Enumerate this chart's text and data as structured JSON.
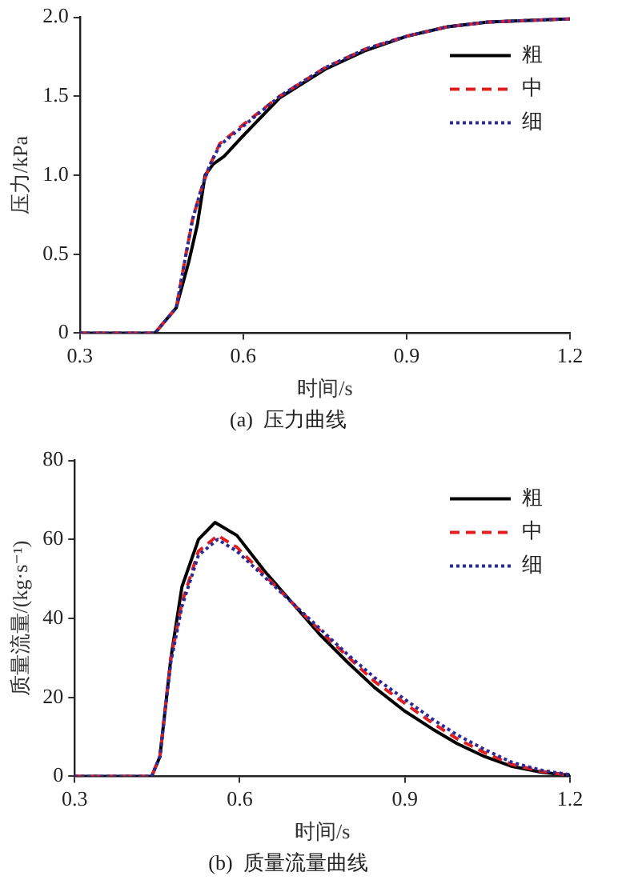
{
  "chart_data": [
    {
      "type": "line",
      "title": "(a)  压力曲线",
      "xlabel": "时间/s",
      "ylabel": "压力/kPa",
      "xlim": [
        0.3,
        1.2
      ],
      "xticks": [
        0.3,
        0.6,
        0.9,
        1.2
      ],
      "ylim": [
        0,
        2
      ],
      "yticks": [
        0,
        0.5,
        {
          "value": 1,
          "label": "1.0"
        },
        1.5,
        {
          "value": 2,
          "label": "2.0"
        }
      ],
      "grid": false,
      "legend": "top right",
      "marker": "none",
      "series": [
        {
          "name": "粗",
          "color": "#000000",
          "line_style": "solid",
          "x": [
            0.3,
            0.438,
            0.477,
            0.5,
            0.516,
            0.53,
            0.545,
            0.565,
            0.6,
            0.667,
            0.75,
            0.825,
            0.9,
            0.975,
            1.05,
            1.125,
            1.2
          ],
          "values": [
            0,
            0,
            0.16,
            0.45,
            0.69,
            1.0,
            1.07,
            1.12,
            1.25,
            1.49,
            1.67,
            1.79,
            1.88,
            1.94,
            1.97,
            1.98,
            1.99
          ]
        },
        {
          "name": "中",
          "color": "#e02020",
          "line_style": "dashed",
          "x": [
            0.3,
            0.438,
            0.477,
            0.495,
            0.507,
            0.522,
            0.537,
            0.557,
            0.6,
            0.667,
            0.75,
            0.825,
            0.9,
            0.975,
            1.05,
            1.125,
            1.2
          ],
          "values": [
            0,
            0,
            0.16,
            0.5,
            0.72,
            0.9,
            1.05,
            1.2,
            1.32,
            1.5,
            1.68,
            1.8,
            1.88,
            1.94,
            1.97,
            1.98,
            1.99
          ]
        },
        {
          "name": "细",
          "color": "#2a2a9a",
          "line_style": "dotted",
          "x": [
            0.3,
            0.438,
            0.477,
            0.495,
            0.507,
            0.522,
            0.537,
            0.557,
            0.6,
            0.667,
            0.75,
            0.825,
            0.9,
            0.975,
            1.05,
            1.125,
            1.2
          ],
          "values": [
            0,
            0,
            0.16,
            0.5,
            0.72,
            0.9,
            1.05,
            1.19,
            1.31,
            1.5,
            1.68,
            1.8,
            1.88,
            1.94,
            1.97,
            1.98,
            1.99
          ]
        }
      ]
    },
    {
      "type": "line",
      "title": "(b)  质量流量曲线",
      "xlabel": "时间/s",
      "ylabel": "质量流量/(kg·s⁻¹)",
      "xlim": [
        0.3,
        1.2
      ],
      "xticks": [
        0.3,
        0.6,
        0.9,
        1.2
      ],
      "ylim": [
        0,
        80
      ],
      "yticks": [
        0,
        20,
        40,
        60,
        80
      ],
      "grid": false,
      "legend": "top right",
      "marker": "none",
      "series": [
        {
          "name": "粗",
          "color": "#000000",
          "line_style": "solid",
          "x": [
            0.3,
            0.44,
            0.455,
            0.475,
            0.495,
            0.525,
            0.555,
            0.595,
            0.645,
            0.695,
            0.745,
            0.795,
            0.845,
            0.9,
            0.95,
            0.995,
            1.045,
            1.095,
            1.15,
            1.2
          ],
          "values": [
            0,
            0,
            5,
            30,
            48,
            60,
            64.3,
            61,
            52,
            44,
            36,
            29,
            22.5,
            16.5,
            12,
            8.3,
            5,
            2.5,
            1,
            0.3
          ]
        },
        {
          "name": "中",
          "color": "#e02020",
          "line_style": "dashed",
          "x": [
            0.3,
            0.44,
            0.455,
            0.475,
            0.495,
            0.525,
            0.56,
            0.595,
            0.645,
            0.695,
            0.745,
            0.795,
            0.845,
            0.9,
            0.95,
            0.995,
            1.045,
            1.095,
            1.15,
            1.2
          ],
          "values": [
            0,
            0,
            5,
            30,
            44,
            57,
            61,
            58,
            51,
            44,
            37,
            30.5,
            24,
            18.5,
            13.5,
            9.5,
            6,
            3,
            1.2,
            0.3
          ]
        },
        {
          "name": "细",
          "color": "#2a2a9a",
          "line_style": "dotted",
          "x": [
            0.3,
            0.44,
            0.455,
            0.475,
            0.495,
            0.525,
            0.56,
            0.595,
            0.645,
            0.695,
            0.745,
            0.795,
            0.845,
            0.9,
            0.95,
            0.995,
            1.045,
            1.095,
            1.15,
            1.2
          ],
          "values": [
            0,
            0,
            5,
            29,
            43,
            56,
            60,
            57,
            50.5,
            44,
            37.5,
            31,
            25,
            19.5,
            14.5,
            10.5,
            6.8,
            3.5,
            1.5,
            0.4
          ]
        }
      ]
    }
  ]
}
